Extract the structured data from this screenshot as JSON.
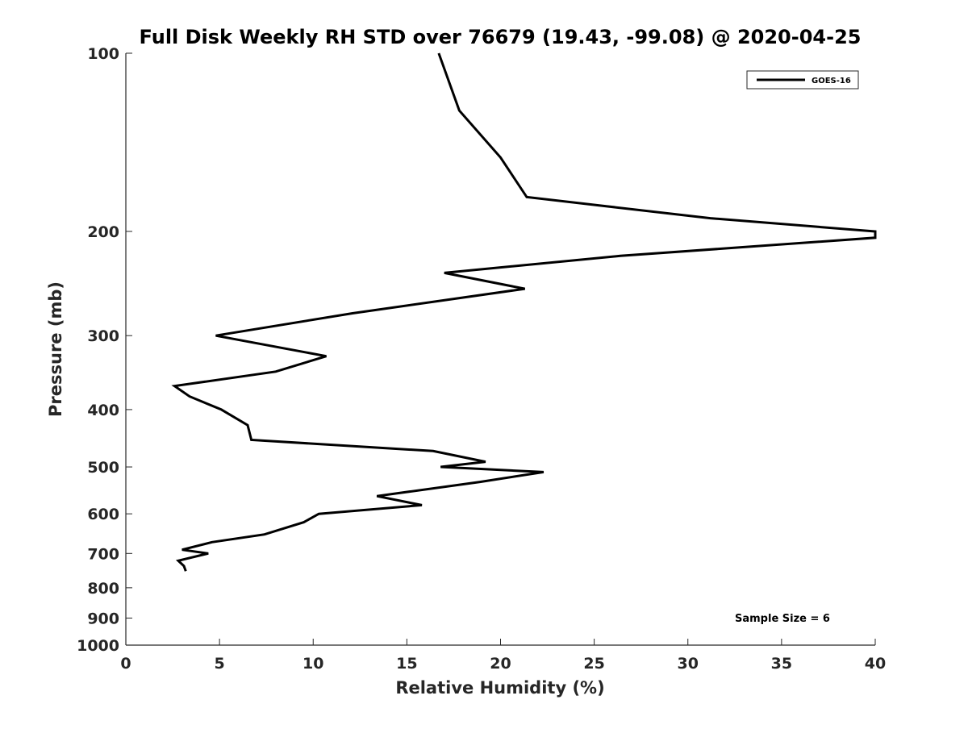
{
  "chart_data": {
    "type": "line",
    "title": "Full Disk Weekly RH STD over 76679 (19.43, -99.08) @ 2020-04-25",
    "xlabel": "Relative Humidity (%)",
    "ylabel": "Pressure (mb)",
    "xlim": [
      0,
      40
    ],
    "ylim": [
      100,
      1000
    ],
    "y_scale": "log",
    "y_reversed": true,
    "grid": false,
    "x_ticks": [
      0,
      5,
      10,
      15,
      20,
      25,
      30,
      35,
      40
    ],
    "x_tick_labels": [
      "0",
      "5",
      "10",
      "15",
      "20",
      "25",
      "30",
      "35",
      "40"
    ],
    "y_ticks": [
      100,
      200,
      300,
      400,
      500,
      600,
      700,
      800,
      900,
      1000
    ],
    "y_tick_labels": [
      "100",
      "200",
      "300",
      "400",
      "500",
      "600",
      "700",
      "800",
      "900",
      "1000"
    ],
    "legend": {
      "position": "top-right",
      "entries": [
        "GOES-16"
      ]
    },
    "annotation": "Sample Size = 6",
    "color": "#000000",
    "series": [
      {
        "name": "GOES-16",
        "points": [
          {
            "p": 100,
            "rh": 16.7
          },
          {
            "p": 125,
            "rh": 17.8
          },
          {
            "p": 150,
            "rh": 20.0
          },
          {
            "p": 175,
            "rh": 21.4
          },
          {
            "p": 190,
            "rh": 31.2
          },
          {
            "p": 200,
            "rh": 40.0
          },
          {
            "p": 205,
            "rh": 40.0
          },
          {
            "p": 220,
            "rh": 26.4
          },
          {
            "p": 235,
            "rh": 17.0
          },
          {
            "p": 250,
            "rh": 21.3
          },
          {
            "p": 275,
            "rh": 12.1
          },
          {
            "p": 300,
            "rh": 4.8
          },
          {
            "p": 325,
            "rh": 10.7
          },
          {
            "p": 345,
            "rh": 8.0
          },
          {
            "p": 365,
            "rh": 2.6
          },
          {
            "p": 380,
            "rh": 3.4
          },
          {
            "p": 400,
            "rh": 5.1
          },
          {
            "p": 425,
            "rh": 6.5
          },
          {
            "p": 450,
            "rh": 6.7
          },
          {
            "p": 470,
            "rh": 16.4
          },
          {
            "p": 490,
            "rh": 19.2
          },
          {
            "p": 500,
            "rh": 16.8
          },
          {
            "p": 510,
            "rh": 22.3
          },
          {
            "p": 530,
            "rh": 18.9
          },
          {
            "p": 560,
            "rh": 13.4
          },
          {
            "p": 580,
            "rh": 15.8
          },
          {
            "p": 600,
            "rh": 10.3
          },
          {
            "p": 620,
            "rh": 9.5
          },
          {
            "p": 650,
            "rh": 7.4
          },
          {
            "p": 670,
            "rh": 4.6
          },
          {
            "p": 690,
            "rh": 3.0
          },
          {
            "p": 700,
            "rh": 4.4
          },
          {
            "p": 720,
            "rh": 2.8
          },
          {
            "p": 735,
            "rh": 3.1
          },
          {
            "p": 750,
            "rh": 3.2
          }
        ]
      }
    ]
  }
}
